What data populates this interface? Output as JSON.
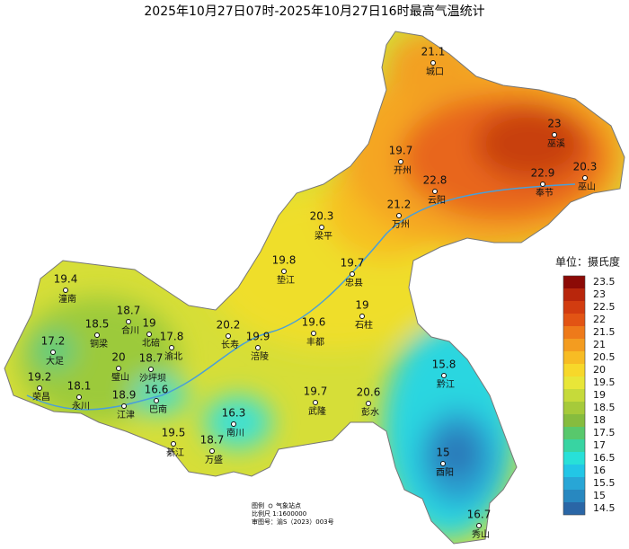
{
  "title": "2025年10月27日07时-2025年10月27日16时最高气温统计",
  "stations": [
    {
      "value": 21.1,
      "name": "城口"
    },
    {
      "value": 23,
      "name": "巫溪"
    },
    {
      "value": 19.7,
      "name": "开州"
    },
    {
      "value": 22.9,
      "name": "奉节"
    },
    {
      "value": 20.3,
      "name": "巫山"
    },
    {
      "value": 22.8,
      "name": "云阳"
    },
    {
      "value": 21.2,
      "name": "万州"
    },
    {
      "value": 20.3,
      "name": "梁平"
    },
    {
      "value": 19.8,
      "name": "垫江"
    },
    {
      "value": 19.7,
      "name": "忠县"
    },
    {
      "value": 19.4,
      "name": "潼南"
    },
    {
      "value": 18.7,
      "name": "合川"
    },
    {
      "value": 19,
      "name": "石柱"
    },
    {
      "value": 18.5,
      "name": "铜梁"
    },
    {
      "value": 19,
      "name": "北碚"
    },
    {
      "value": 17.8,
      "name": "渝北"
    },
    {
      "value": 20.2,
      "name": "长寿"
    },
    {
      "value": 19.9,
      "name": "涪陵"
    },
    {
      "value": 19.6,
      "name": "丰都"
    },
    {
      "value": 17.2,
      "name": "大足"
    },
    {
      "value": 20,
      "name": "璧山"
    },
    {
      "value": 18.7,
      "name": "沙坪坝"
    },
    {
      "value": 15.8,
      "name": "黔江"
    },
    {
      "value": 19.2,
      "name": "荣昌"
    },
    {
      "value": 18.1,
      "name": "永川"
    },
    {
      "value": 18.9,
      "name": "江津"
    },
    {
      "value": 16.6,
      "name": "巴南"
    },
    {
      "value": 19.7,
      "name": "武隆"
    },
    {
      "value": 20.6,
      "name": "彭水"
    },
    {
      "value": 16.3,
      "name": "南川"
    },
    {
      "value": 19.5,
      "name": "綦江"
    },
    {
      "value": 18.7,
      "name": "万盛"
    },
    {
      "value": 15,
      "name": "酉阳"
    },
    {
      "value": 16.7,
      "name": "秀山"
    }
  ],
  "legend": {
    "unit": "单位：摄氏度",
    "items": [
      {
        "value": 23.5,
        "color": "#8c0a06"
      },
      {
        "value": 23,
        "color": "#b8260c"
      },
      {
        "value": 22.5,
        "color": "#d23c10"
      },
      {
        "value": 22,
        "color": "#e25414"
      },
      {
        "value": 21.5,
        "color": "#ee7a1a"
      },
      {
        "value": 21,
        "color": "#f39c20"
      },
      {
        "value": 20.5,
        "color": "#f7bc24"
      },
      {
        "value": 20,
        "color": "#f7d82a"
      },
      {
        "value": 19.5,
        "color": "#e8e638"
      },
      {
        "value": 19,
        "color": "#c6da3a"
      },
      {
        "value": 18.5,
        "color": "#a6ca3a"
      },
      {
        "value": 18,
        "color": "#86bc3e"
      },
      {
        "value": 17.5,
        "color": "#58c86c"
      },
      {
        "value": 17,
        "color": "#38d4a2"
      },
      {
        "value": 16.5,
        "color": "#28e0d8"
      },
      {
        "value": 16,
        "color": "#22c6e6"
      },
      {
        "value": 15.5,
        "color": "#28a6d6"
      },
      {
        "value": 15,
        "color": "#2888c0"
      },
      {
        "value": 14.5,
        "color": "#2a66a6"
      }
    ]
  },
  "footer": {
    "legend_label": "图例",
    "legend_symbol": "气象站点",
    "scale": "比例尺 1:1600000",
    "approval": "审图号：渝S（2023）003号"
  }
}
